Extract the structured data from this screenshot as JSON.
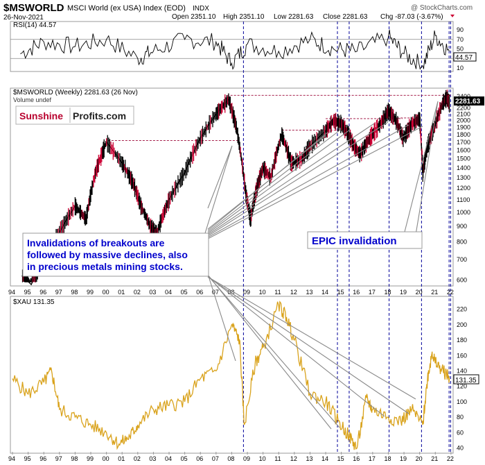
{
  "header": {
    "symbol": "$MSWORLD",
    "name": "MSCI World (ex USA) Index (EOD)",
    "exchange": "INDX",
    "date": "26-Nov-2021",
    "open": "Open 2351.10",
    "high": "High 2351.10",
    "low": "Low 2281.63",
    "close": "Close 2281.63",
    "chg": "Chg -87.03 (-3.67%)",
    "watermark": "@ StockCharts.com"
  },
  "rsi_panel": {
    "label": "RSI(14) 44.57",
    "last_value": "44.57",
    "ticks": [
      "90",
      "70",
      "50",
      "30",
      "10"
    ]
  },
  "price_panel": {
    "label": "$MSWORLD (Weekly) 2281.63 (26 Nov)",
    "sublabel": "Volume undef",
    "last_value": "2281.63",
    "ticks": [
      "2400",
      "2300",
      "2200",
      "2100",
      "2000",
      "1900",
      "1800",
      "1700",
      "1600",
      "1500",
      "1400",
      "1300",
      "1200",
      "1100",
      "1000",
      "900",
      "800",
      "700",
      "600"
    ]
  },
  "xau_panel": {
    "label": "$XAU 131.35",
    "last_value": "131.35",
    "ticks": [
      "220",
      "200",
      "180",
      "160",
      "140",
      "120",
      "100",
      "80",
      "60",
      "40"
    ]
  },
  "logo": {
    "part1": "Sunshine",
    "part2": "Profits.com"
  },
  "annotations": {
    "breakouts": [
      "Invalidations of breakouts are",
      "followed by massive declines, also",
      "in precious metals mining stocks."
    ],
    "epic": "EPIC invalidation"
  },
  "x_axis": {
    "years": [
      "94",
      "95",
      "96",
      "97",
      "98",
      "99",
      "00",
      "01",
      "02",
      "03",
      "04",
      "05",
      "06",
      "07",
      "08",
      "09",
      "10",
      "11",
      "12",
      "13",
      "14",
      "15",
      "16",
      "17",
      "18",
      "19",
      "20",
      "21",
      "22"
    ]
  },
  "colors": {
    "price": "#000000",
    "price_down": "#cc0033",
    "xau": "#d9a21b",
    "marker": "#000099",
    "resistance": "#990033",
    "annotation": "#0000cc",
    "logo_red": "#b8002e"
  },
  "chart_data": [
    {
      "type": "line",
      "title": "RSI(14)",
      "x": [
        1994.5,
        1996,
        1998,
        2000,
        2002,
        2003,
        2005,
        2007,
        2008,
        2009,
        2011,
        2013,
        2014.5,
        2016,
        2018,
        2019,
        2020.2,
        2021,
        2021.9
      ],
      "values": [
        40,
        65,
        55,
        70,
        30,
        45,
        70,
        65,
        20,
        60,
        45,
        70,
        50,
        45,
        75,
        40,
        15,
        78,
        44.57
      ],
      "ylim": [
        0,
        100
      ]
    },
    {
      "type": "line",
      "title": "$MSWORLD (Weekly)",
      "ylabel": "log scale",
      "x": [
        1994.6,
        1995.2,
        1996,
        1997,
        1998,
        1998.7,
        1999.3,
        2000.0,
        2001.0,
        2001.7,
        2002.2,
        2002.8,
        2003.2,
        2004,
        2005,
        2006,
        2007,
        2007.8,
        2008.3,
        2008.9,
        2009.2,
        2009.6,
        2010,
        2010.5,
        2011.2,
        2011.8,
        2012.5,
        2013,
        2014,
        2014.5,
        2015.0,
        2015.4,
        2015.8,
        2016.2,
        2016.8,
        2017.5,
        2018.0,
        2018.5,
        2018.95,
        2019.5,
        2020.0,
        2020.2,
        2020.5,
        2021.0,
        2021.5,
        2021.75,
        2021.9
      ],
      "values": [
        620,
        580,
        700,
        860,
        1050,
        950,
        1350,
        1700,
        1450,
        1250,
        1050,
        900,
        850,
        1100,
        1350,
        1750,
        2100,
        2350,
        1900,
        1150,
        950,
        1200,
        1400,
        1300,
        1800,
        1450,
        1500,
        1650,
        1850,
        2000,
        1950,
        1820,
        1650,
        1550,
        1750,
        1950,
        2150,
        2000,
        1750,
        1950,
        2030,
        1350,
        1650,
        1950,
        2300,
        2380,
        2281.63
      ],
      "resistance_levels": [
        1720,
        2420,
        1860,
        2030,
        2040
      ],
      "ylim": [
        580,
        2450
      ]
    },
    {
      "type": "line",
      "title": "$XAU",
      "x": [
        1994,
        1995,
        1996,
        1996.5,
        1997,
        1998,
        1999,
        2000,
        2000.8,
        2001.5,
        2002,
        2003,
        2004,
        2005,
        2006,
        2007,
        2008.0,
        2008.5,
        2008.8,
        2009.5,
        2010,
        2011,
        2011.5,
        2012,
        2013,
        2014,
        2014.8,
        2015.5,
        2016.0,
        2016.6,
        2017,
        2018,
        2018.8,
        2019.5,
        2020.2,
        2020.5,
        2020.8,
        2021,
        2021.5,
        2021.9
      ],
      "values": [
        130,
        110,
        125,
        140,
        90,
        80,
        70,
        60,
        45,
        55,
        70,
        90,
        95,
        100,
        130,
        140,
        200,
        180,
        70,
        150,
        170,
        225,
        210,
        180,
        110,
        100,
        75,
        55,
        40,
        105,
        90,
        80,
        75,
        90,
        70,
        130,
        165,
        150,
        140,
        131.35
      ],
      "ylim": [
        35,
        235
      ]
    }
  ]
}
